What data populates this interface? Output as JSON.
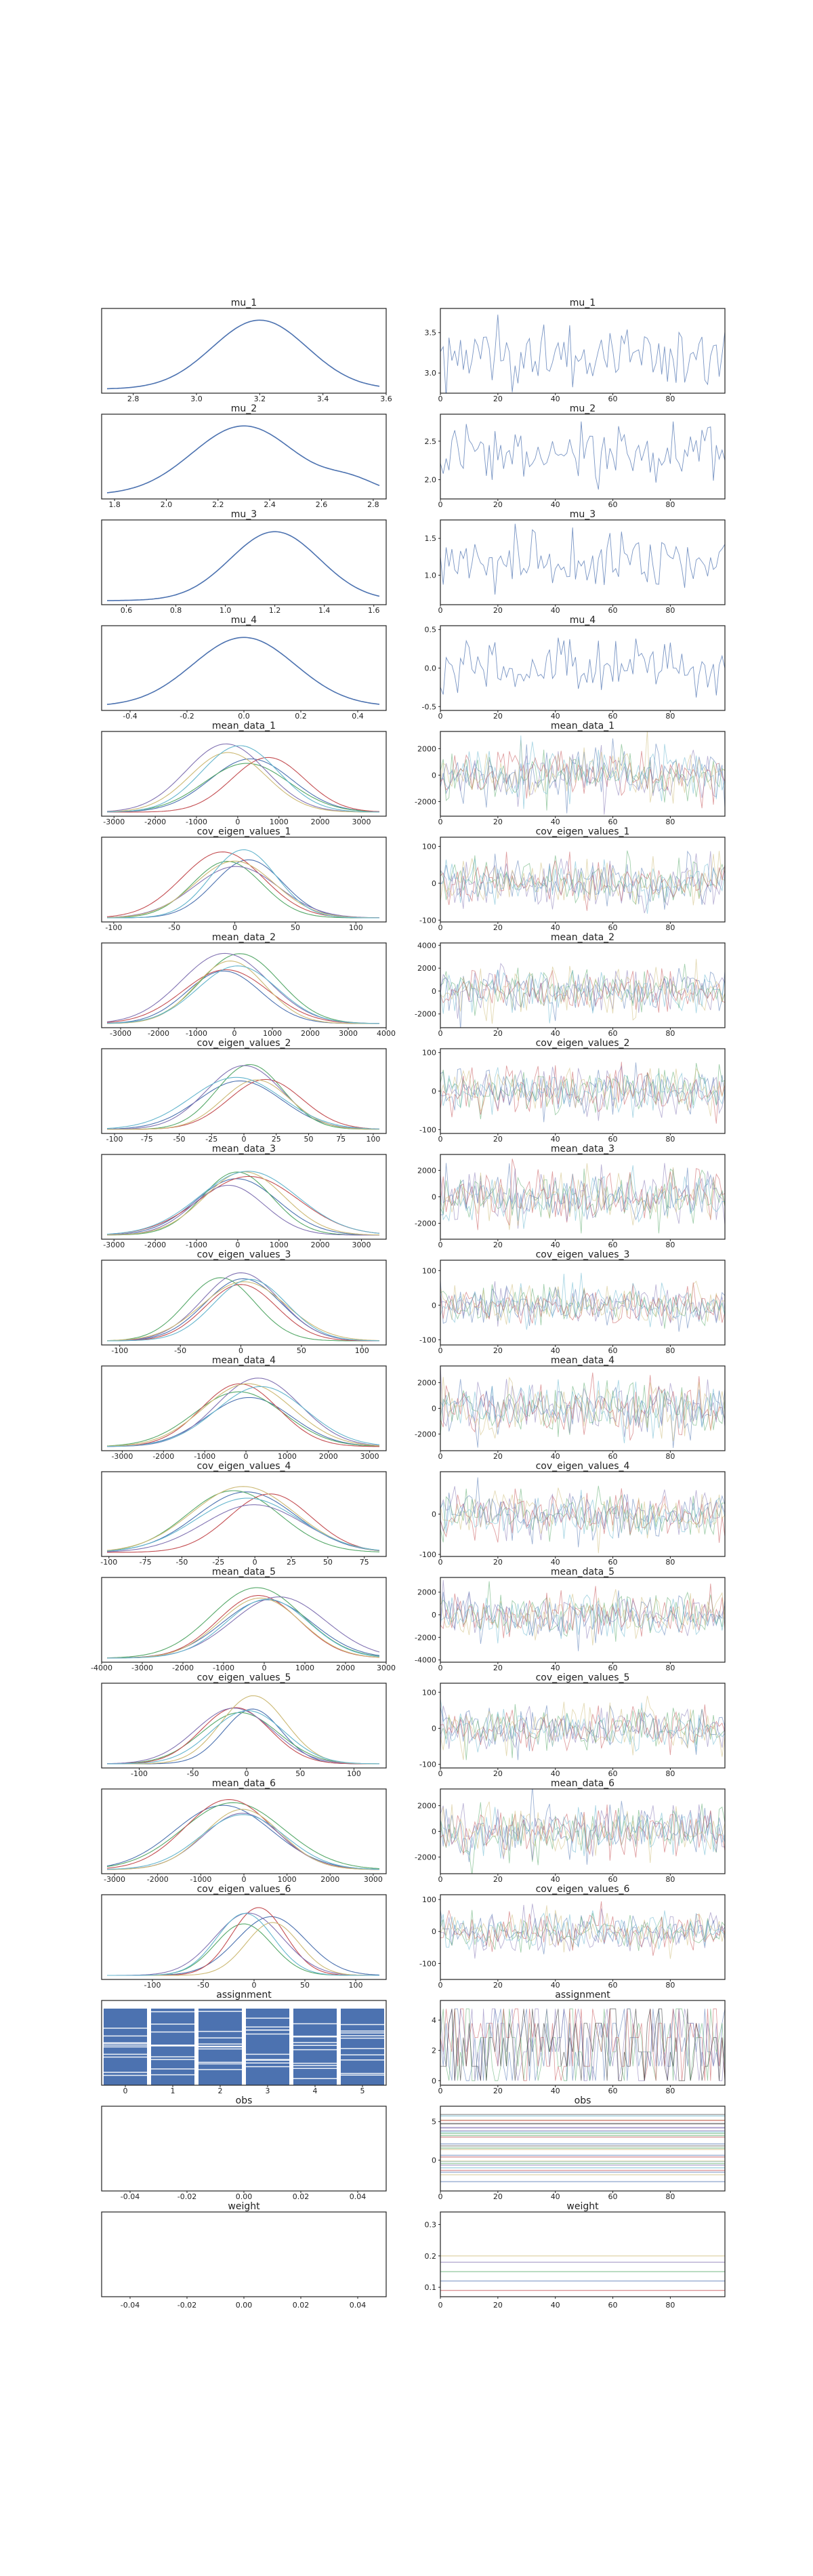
{
  "figure": {
    "type": "traceplot",
    "background": "#ffffff",
    "axes_color": "#222222"
  },
  "chart_data": [
    {
      "name": "mu_1",
      "type": "kde+trace",
      "xticks": [
        "2.8",
        "3.0",
        "3.2",
        "3.4",
        "3.6"
      ],
      "xlim": [
        2.7,
        3.6
      ],
      "trace_yticks": [
        "3.5",
        "3.0"
      ],
      "trace_ylim": [
        2.75,
        3.8
      ],
      "trace_xticks": [
        "0",
        "20",
        "40",
        "60",
        "80"
      ],
      "chains": 1,
      "kde_center": 3.2,
      "kde_sd": 0.15,
      "trace_mean": 3.2,
      "trace_sd": 0.2,
      "colors": [
        "#4c72b0"
      ]
    },
    {
      "name": "mu_2",
      "type": "kde+trace",
      "xticks": [
        "1.8",
        "2.0",
        "2.2",
        "2.4",
        "2.6",
        "2.8"
      ],
      "xlim": [
        1.75,
        2.85
      ],
      "trace_yticks": [
        "2.5",
        "2.0"
      ],
      "trace_ylim": [
        1.75,
        2.85
      ],
      "trace_xticks": [
        "0",
        "20",
        "40",
        "60",
        "80"
      ],
      "chains": 1,
      "kde_center": 2.3,
      "kde_sd": 0.2,
      "trace_mean": 2.3,
      "trace_sd": 0.2,
      "colors": [
        "#4c72b0"
      ]
    },
    {
      "name": "mu_3",
      "type": "kde+trace",
      "xticks": [
        "0.6",
        "0.8",
        "1.0",
        "1.2",
        "1.4",
        "1.6"
      ],
      "xlim": [
        0.5,
        1.65
      ],
      "trace_yticks": [
        "1.5",
        "1.0"
      ],
      "trace_ylim": [
        0.6,
        1.75
      ],
      "trace_xticks": [
        "0",
        "20",
        "40",
        "60",
        "80"
      ],
      "chains": 1,
      "kde_center": 1.2,
      "kde_sd": 0.18,
      "trace_mean": 1.2,
      "trace_sd": 0.2,
      "colors": [
        "#4c72b0"
      ]
    },
    {
      "name": "mu_4",
      "type": "kde+trace",
      "xticks": [
        "-0.4",
        "-0.2",
        "0.0",
        "0.2",
        "0.4"
      ],
      "xlim": [
        -0.5,
        0.5
      ],
      "trace_yticks": [
        "0.5",
        "0.0",
        "-0.5"
      ],
      "trace_ylim": [
        -0.55,
        0.55
      ],
      "trace_xticks": [
        "0",
        "20",
        "40",
        "60",
        "80"
      ],
      "chains": 1,
      "kde_center": 0.0,
      "kde_sd": 0.18,
      "trace_mean": 0.0,
      "trace_sd": 0.18,
      "colors": [
        "#4c72b0"
      ]
    },
    {
      "name": "mean_data_1",
      "type": "kde+trace",
      "xticks": [
        "-3000",
        "-2000",
        "-1000",
        "0",
        "1000",
        "2000",
        "3000"
      ],
      "xlim": [
        -3300,
        3600
      ],
      "trace_yticks": [
        "2000",
        "0",
        "-2000"
      ],
      "trace_ylim": [
        -3100,
        3300
      ],
      "trace_xticks": [
        "0",
        "20",
        "40",
        "60",
        "80"
      ],
      "chains": 6,
      "kde_center": 0,
      "kde_sd": 1000,
      "trace_mean": 0,
      "trace_sd": 1000,
      "colors": [
        "#4c72b0",
        "#55a868",
        "#c44e52",
        "#8172b2",
        "#ccb974",
        "#64b5cd",
        "#dd8452",
        "#937860",
        "#222222"
      ]
    },
    {
      "name": "cov_eigen_values_1",
      "type": "kde+trace",
      "xticks": [
        "-100",
        "-50",
        "0",
        "50",
        "100"
      ],
      "xlim": [
        -110,
        125
      ],
      "trace_yticks": [
        "100",
        "0",
        "-100"
      ],
      "trace_ylim": [
        -105,
        125
      ],
      "trace_xticks": [
        "0",
        "20",
        "40",
        "60",
        "80"
      ],
      "chains": 6,
      "kde_center": 0,
      "kde_sd": 30,
      "trace_mean": 0,
      "trace_sd": 30,
      "colors": [
        "#4c72b0",
        "#55a868",
        "#c44e52",
        "#8172b2",
        "#ccb974",
        "#64b5cd",
        "#dd8452",
        "#937860",
        "#222222"
      ]
    },
    {
      "name": "mean_data_2",
      "type": "kde+trace",
      "xticks": [
        "-3000",
        "-2000",
        "-1000",
        "0",
        "1000",
        "2000",
        "3000",
        "4000"
      ],
      "xlim": [
        -3500,
        4000
      ],
      "trace_yticks": [
        "4000",
        "2000",
        "0",
        "-2000"
      ],
      "trace_ylim": [
        -3200,
        4200
      ],
      "trace_xticks": [
        "0",
        "20",
        "40",
        "60",
        "80"
      ],
      "chains": 6,
      "kde_center": 0,
      "kde_sd": 1000,
      "trace_mean": 0,
      "trace_sd": 1000,
      "colors": [
        "#4c72b0",
        "#55a868",
        "#c44e52",
        "#8172b2",
        "#ccb974",
        "#64b5cd",
        "#dd8452",
        "#937860",
        "#222222"
      ]
    },
    {
      "name": "cov_eigen_values_2",
      "type": "kde+trace",
      "xticks": [
        "-100",
        "-75",
        "-50",
        "-25",
        "0",
        "25",
        "50",
        "75",
        "100"
      ],
      "xlim": [
        -110,
        110
      ],
      "trace_yticks": [
        "100",
        "0",
        "-100"
      ],
      "trace_ylim": [
        -110,
        110
      ],
      "trace_xticks": [
        "0",
        "20",
        "40",
        "60",
        "80"
      ],
      "chains": 6,
      "kde_center": 0,
      "kde_sd": 30,
      "trace_mean": 0,
      "trace_sd": 30,
      "colors": [
        "#4c72b0",
        "#55a868",
        "#c44e52",
        "#8172b2",
        "#ccb974",
        "#64b5cd",
        "#dd8452",
        "#937860",
        "#222222"
      ]
    },
    {
      "name": "mean_data_3",
      "type": "kde+trace",
      "xticks": [
        "-3000",
        "-2000",
        "-1000",
        "0",
        "1000",
        "2000",
        "3000"
      ],
      "xlim": [
        -3300,
        3600
      ],
      "trace_yticks": [
        "2000",
        "0",
        "-2000"
      ],
      "trace_ylim": [
        -3200,
        3200
      ],
      "trace_xticks": [
        "0",
        "20",
        "40",
        "60",
        "80"
      ],
      "chains": 6,
      "kde_center": 0,
      "kde_sd": 1000,
      "trace_mean": 0,
      "trace_sd": 1000,
      "colors": [
        "#4c72b0",
        "#55a868",
        "#c44e52",
        "#8172b2",
        "#ccb974",
        "#64b5cd",
        "#dd8452",
        "#937860",
        "#222222"
      ]
    },
    {
      "name": "cov_eigen_values_3",
      "type": "kde+trace",
      "xticks": [
        "-100",
        "-50",
        "0",
        "50",
        "100"
      ],
      "xlim": [
        -115,
        120
      ],
      "trace_yticks": [
        "100",
        "0",
        "-100"
      ],
      "trace_ylim": [
        -115,
        130
      ],
      "trace_xticks": [
        "0",
        "20",
        "40",
        "60",
        "80"
      ],
      "chains": 6,
      "kde_center": 0,
      "kde_sd": 30,
      "trace_mean": 0,
      "trace_sd": 30,
      "colors": [
        "#4c72b0",
        "#55a868",
        "#c44e52",
        "#8172b2",
        "#ccb974",
        "#64b5cd",
        "#dd8452",
        "#937860",
        "#222222"
      ]
    },
    {
      "name": "mean_data_4",
      "type": "kde+trace",
      "xticks": [
        "-3000",
        "-2000",
        "-1000",
        "0",
        "1000",
        "2000",
        "3000"
      ],
      "xlim": [
        -3500,
        3400
      ],
      "trace_yticks": [
        "2000",
        "0",
        "-2000"
      ],
      "trace_ylim": [
        -3300,
        3300
      ],
      "trace_xticks": [
        "0",
        "20",
        "40",
        "60",
        "80"
      ],
      "chains": 6,
      "kde_center": 0,
      "kde_sd": 1000,
      "trace_mean": 0,
      "trace_sd": 1000,
      "colors": [
        "#4c72b0",
        "#55a868",
        "#c44e52",
        "#8172b2",
        "#ccb974",
        "#64b5cd",
        "#dd8452",
        "#937860",
        "#222222"
      ]
    },
    {
      "name": "cov_eigen_values_4",
      "type": "kde+trace",
      "xticks": [
        "-100",
        "-75",
        "-50",
        "-25",
        "0",
        "25",
        "50",
        "75"
      ],
      "xlim": [
        -105,
        90
      ],
      "trace_yticks": [
        "0",
        "-100"
      ],
      "trace_ylim": [
        -105,
        105
      ],
      "trace_xticks": [
        "0",
        "20",
        "40",
        "60",
        "80"
      ],
      "chains": 6,
      "kde_center": 0,
      "kde_sd": 30,
      "trace_mean": 0,
      "trace_sd": 30,
      "colors": [
        "#4c72b0",
        "#55a868",
        "#c44e52",
        "#8172b2",
        "#ccb974",
        "#64b5cd",
        "#dd8452",
        "#937860",
        "#222222"
      ]
    },
    {
      "name": "mean_data_5",
      "type": "kde+trace",
      "xticks": [
        "-4000",
        "-3000",
        "-2000",
        "-1000",
        "0",
        "1000",
        "2000",
        "3000"
      ],
      "xlim": [
        -4000,
        3000
      ],
      "trace_yticks": [
        "2000",
        "0",
        "-2000",
        "-4000"
      ],
      "trace_ylim": [
        -4200,
        3300
      ],
      "trace_xticks": [
        "0",
        "20",
        "40",
        "60",
        "80"
      ],
      "chains": 6,
      "kde_center": 0,
      "kde_sd": 1000,
      "trace_mean": 0,
      "trace_sd": 1000,
      "colors": [
        "#4c72b0",
        "#55a868",
        "#c44e52",
        "#8172b2",
        "#ccb974",
        "#64b5cd",
        "#dd8452",
        "#937860",
        "#222222"
      ]
    },
    {
      "name": "cov_eigen_values_5",
      "type": "kde+trace",
      "xticks": [
        "-100",
        "-50",
        "0",
        "50",
        "100"
      ],
      "xlim": [
        -135,
        130
      ],
      "trace_yticks": [
        "100",
        "0",
        "-100"
      ],
      "trace_ylim": [
        -110,
        125
      ],
      "trace_xticks": [
        "0",
        "20",
        "40",
        "60",
        "80"
      ],
      "chains": 6,
      "kde_center": 0,
      "kde_sd": 30,
      "trace_mean": 0,
      "trace_sd": 30,
      "colors": [
        "#4c72b0",
        "#55a868",
        "#c44e52",
        "#8172b2",
        "#ccb974",
        "#64b5cd",
        "#dd8452",
        "#937860",
        "#222222"
      ]
    },
    {
      "name": "mean_data_6",
      "type": "kde+trace",
      "xticks": [
        "-3000",
        "-2000",
        "-1000",
        "0",
        "1000",
        "2000",
        "3000"
      ],
      "xlim": [
        -3300,
        3300
      ],
      "trace_yticks": [
        "2000",
        "0",
        "-2000"
      ],
      "trace_ylim": [
        -3300,
        3300
      ],
      "trace_xticks": [
        "0",
        "20",
        "40",
        "60",
        "80"
      ],
      "chains": 6,
      "kde_center": 0,
      "kde_sd": 1000,
      "trace_mean": 0,
      "trace_sd": 1000,
      "colors": [
        "#4c72b0",
        "#55a868",
        "#c44e52",
        "#8172b2",
        "#ccb974",
        "#64b5cd",
        "#dd8452",
        "#937860",
        "#222222"
      ]
    },
    {
      "name": "cov_eigen_values_6",
      "type": "kde+trace",
      "xticks": [
        "-100",
        "-50",
        "0",
        "50",
        "100"
      ],
      "xlim": [
        -150,
        130
      ],
      "trace_yticks": [
        "100",
        "0",
        "-100"
      ],
      "trace_ylim": [
        -150,
        115
      ],
      "trace_xticks": [
        "0",
        "20",
        "40",
        "60",
        "80"
      ],
      "chains": 6,
      "kde_center": 0,
      "kde_sd": 30,
      "trace_mean": 0,
      "trace_sd": 30,
      "colors": [
        "#4c72b0",
        "#55a868",
        "#c44e52",
        "#8172b2",
        "#ccb974",
        "#64b5cd",
        "#dd8452",
        "#937860",
        "#222222"
      ]
    },
    {
      "name": "assignment",
      "type": "hist+trace",
      "xticks": [
        "0",
        "1",
        "2",
        "3",
        "4",
        "5"
      ],
      "xlim": [
        -0.5,
        5.5
      ],
      "categories": [
        0,
        1,
        2,
        3,
        4,
        5
      ],
      "trace_yticks": [
        "4",
        "2",
        "0"
      ],
      "trace_ylim": [
        -0.3,
        5.3
      ],
      "trace_xticks": [
        "0",
        "20",
        "40",
        "60",
        "80"
      ],
      "bar_color": "#4c72b0",
      "colors": [
        "#4c72b0",
        "#55a868",
        "#c44e52",
        "#8172b2",
        "#222222"
      ]
    },
    {
      "name": "obs",
      "type": "empty+trace",
      "xticks": [
        "-0.04",
        "-0.02",
        "0.00",
        "0.02",
        "0.04"
      ],
      "xlim": [
        -0.05,
        0.05
      ],
      "trace_yticks": [
        "5",
        "0"
      ],
      "trace_ylim": [
        -4,
        7
      ],
      "trace_xticks": [
        "0",
        "20",
        "40",
        "60",
        "80"
      ],
      "colors": [
        "#555555",
        "#4c72b0",
        "#55a868",
        "#c44e52",
        "#8172b2",
        "#ccb974",
        "#64b5cd"
      ]
    },
    {
      "name": "weight",
      "type": "empty+trace",
      "xticks": [
        "-0.04",
        "-0.02",
        "0.00",
        "0.02",
        "0.04"
      ],
      "xlim": [
        -0.05,
        0.05
      ],
      "trace_yticks": [
        "0.3",
        "0.2",
        "0.1"
      ],
      "trace_ylim": [
        0.07,
        0.34
      ],
      "trace_xticks": [
        "0",
        "20",
        "40",
        "60",
        "80"
      ],
      "weights": [
        0.09,
        0.12,
        0.15,
        0.18,
        0.2
      ],
      "colors": [
        "#c44e52",
        "#4c72b0",
        "#55a868",
        "#8172b2",
        "#ccb974",
        "#dd8452"
      ]
    }
  ]
}
